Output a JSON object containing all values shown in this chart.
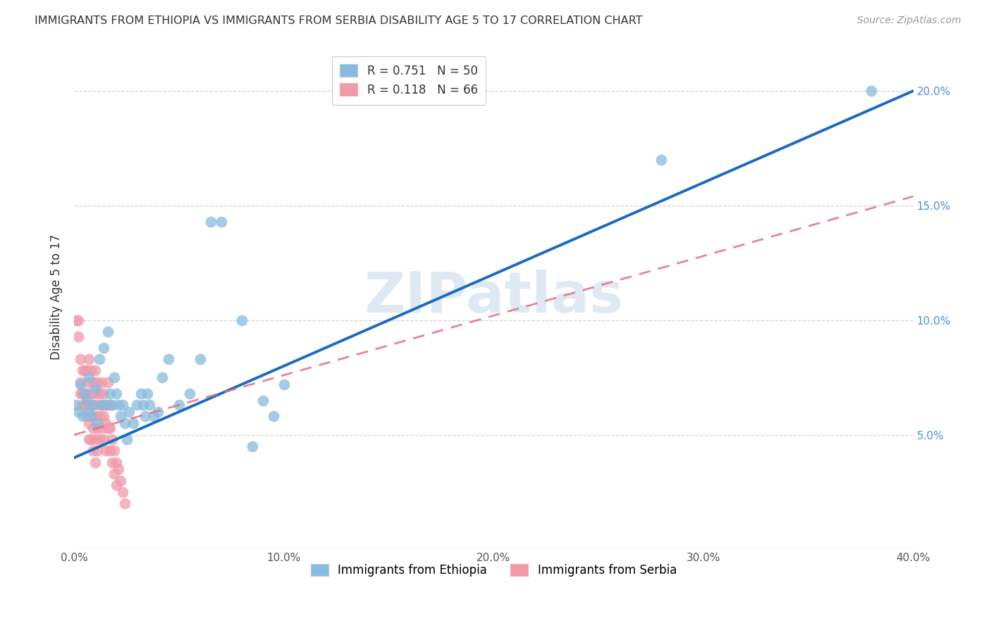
{
  "title": "IMMIGRANTS FROM ETHIOPIA VS IMMIGRANTS FROM SERBIA DISABILITY AGE 5 TO 17 CORRELATION CHART",
  "source": "Source: ZipAtlas.com",
  "ylabel": "Disability Age 5 to 17",
  "xlim": [
    0.0,
    0.4
  ],
  "ylim": [
    0.0,
    0.22
  ],
  "x_ticks": [
    0.0,
    0.1,
    0.2,
    0.3,
    0.4
  ],
  "x_tick_labels": [
    "0.0%",
    "10.0%",
    "20.0%",
    "30.0%",
    "40.0%"
  ],
  "y_ticks": [
    0.0,
    0.05,
    0.1,
    0.15,
    0.2
  ],
  "y_tick_labels_right": [
    "",
    "5.0%",
    "10.0%",
    "15.0%",
    "20.0%"
  ],
  "legend_label_eth": "R = 0.751   N = 50",
  "legend_label_serb": "R = 0.118   N = 66",
  "watermark": "ZIPatlas",
  "ethiopia_color": "#88bbdd",
  "serbia_color": "#f09aaa",
  "ethiopia_line_color": "#1a6bbf",
  "serbia_line_color": "#e07085",
  "ethiopia_line_intercept": 0.04,
  "ethiopia_line_slope": 0.4,
  "serbia_line_intercept": 0.05,
  "serbia_line_slope": 0.26,
  "ethiopia_points": [
    [
      0.001,
      0.063
    ],
    [
      0.002,
      0.06
    ],
    [
      0.003,
      0.072
    ],
    [
      0.004,
      0.058
    ],
    [
      0.005,
      0.068
    ],
    [
      0.006,
      0.065
    ],
    [
      0.007,
      0.06
    ],
    [
      0.007,
      0.075
    ],
    [
      0.008,
      0.058
    ],
    [
      0.009,
      0.063
    ],
    [
      0.01,
      0.07
    ],
    [
      0.011,
      0.055
    ],
    [
      0.012,
      0.083
    ],
    [
      0.013,
      0.063
    ],
    [
      0.014,
      0.088
    ],
    [
      0.015,
      0.063
    ],
    [
      0.016,
      0.095
    ],
    [
      0.017,
      0.068
    ],
    [
      0.018,
      0.063
    ],
    [
      0.019,
      0.075
    ],
    [
      0.02,
      0.068
    ],
    [
      0.021,
      0.063
    ],
    [
      0.022,
      0.058
    ],
    [
      0.023,
      0.063
    ],
    [
      0.024,
      0.055
    ],
    [
      0.025,
      0.048
    ],
    [
      0.026,
      0.06
    ],
    [
      0.028,
      0.055
    ],
    [
      0.03,
      0.063
    ],
    [
      0.032,
      0.068
    ],
    [
      0.033,
      0.063
    ],
    [
      0.034,
      0.058
    ],
    [
      0.035,
      0.068
    ],
    [
      0.036,
      0.063
    ],
    [
      0.038,
      0.058
    ],
    [
      0.04,
      0.06
    ],
    [
      0.042,
      0.075
    ],
    [
      0.045,
      0.083
    ],
    [
      0.05,
      0.063
    ],
    [
      0.055,
      0.068
    ],
    [
      0.06,
      0.083
    ],
    [
      0.065,
      0.143
    ],
    [
      0.07,
      0.143
    ],
    [
      0.08,
      0.1
    ],
    [
      0.085,
      0.045
    ],
    [
      0.09,
      0.065
    ],
    [
      0.095,
      0.058
    ],
    [
      0.1,
      0.072
    ],
    [
      0.28,
      0.17
    ],
    [
      0.38,
      0.2
    ]
  ],
  "serbia_points": [
    [
      0.001,
      0.1
    ],
    [
      0.002,
      0.1
    ],
    [
      0.002,
      0.093
    ],
    [
      0.003,
      0.083
    ],
    [
      0.003,
      0.073
    ],
    [
      0.003,
      0.068
    ],
    [
      0.004,
      0.078
    ],
    [
      0.004,
      0.068
    ],
    [
      0.004,
      0.063
    ],
    [
      0.005,
      0.078
    ],
    [
      0.005,
      0.068
    ],
    [
      0.005,
      0.063
    ],
    [
      0.006,
      0.078
    ],
    [
      0.006,
      0.068
    ],
    [
      0.006,
      0.063
    ],
    [
      0.006,
      0.058
    ],
    [
      0.007,
      0.083
    ],
    [
      0.007,
      0.073
    ],
    [
      0.007,
      0.063
    ],
    [
      0.007,
      0.055
    ],
    [
      0.007,
      0.048
    ],
    [
      0.008,
      0.078
    ],
    [
      0.008,
      0.068
    ],
    [
      0.008,
      0.058
    ],
    [
      0.008,
      0.048
    ],
    [
      0.009,
      0.073
    ],
    [
      0.009,
      0.063
    ],
    [
      0.009,
      0.053
    ],
    [
      0.009,
      0.043
    ],
    [
      0.01,
      0.078
    ],
    [
      0.01,
      0.068
    ],
    [
      0.01,
      0.058
    ],
    [
      0.01,
      0.048
    ],
    [
      0.01,
      0.038
    ],
    [
      0.011,
      0.073
    ],
    [
      0.011,
      0.063
    ],
    [
      0.011,
      0.053
    ],
    [
      0.011,
      0.043
    ],
    [
      0.012,
      0.068
    ],
    [
      0.012,
      0.058
    ],
    [
      0.012,
      0.048
    ],
    [
      0.013,
      0.073
    ],
    [
      0.013,
      0.063
    ],
    [
      0.013,
      0.053
    ],
    [
      0.014,
      0.068
    ],
    [
      0.014,
      0.058
    ],
    [
      0.014,
      0.048
    ],
    [
      0.015,
      0.063
    ],
    [
      0.015,
      0.055
    ],
    [
      0.015,
      0.043
    ],
    [
      0.016,
      0.073
    ],
    [
      0.016,
      0.063
    ],
    [
      0.016,
      0.053
    ],
    [
      0.017,
      0.063
    ],
    [
      0.017,
      0.053
    ],
    [
      0.017,
      0.043
    ],
    [
      0.018,
      0.048
    ],
    [
      0.018,
      0.038
    ],
    [
      0.019,
      0.043
    ],
    [
      0.019,
      0.033
    ],
    [
      0.02,
      0.038
    ],
    [
      0.02,
      0.028
    ],
    [
      0.021,
      0.035
    ],
    [
      0.022,
      0.03
    ],
    [
      0.023,
      0.025
    ],
    [
      0.024,
      0.02
    ]
  ]
}
